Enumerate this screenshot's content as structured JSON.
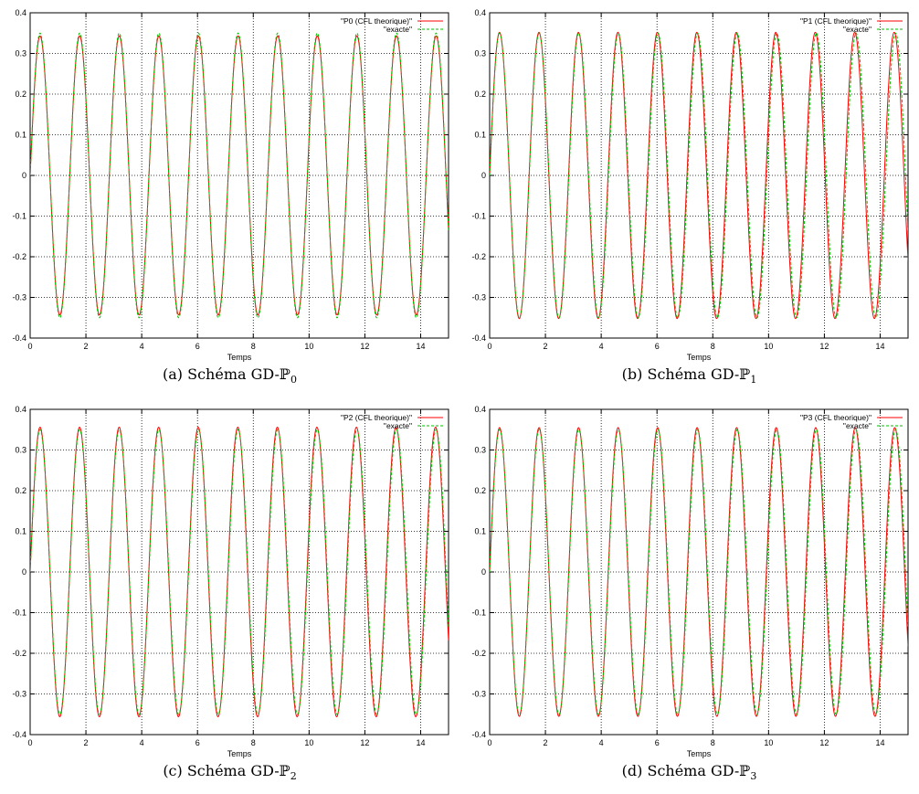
{
  "chart_data": [
    {
      "type": "line",
      "caption": "(a) Schéma GD-ℙ0",
      "caption_text": "(a) Schéma GD-ℙ",
      "caption_sub": "0",
      "xlabel": "Temps",
      "ylabel": "",
      "xlim": [
        0,
        15
      ],
      "ylim": [
        -0.4,
        0.4
      ],
      "xticks": [
        0,
        2,
        4,
        6,
        8,
        10,
        12,
        14
      ],
      "yticks": [
        -0.4,
        -0.3,
        -0.2,
        -0.1,
        0,
        0.1,
        0.2,
        0.3,
        0.4
      ],
      "grid": true,
      "legend_position": "top-right",
      "series": [
        {
          "name": "\"P0 (CFL theorique)\"",
          "color": "#ff0000",
          "dash": "solid",
          "amplitude": 0.343,
          "period": 1.42
        },
        {
          "name": "\"exacte\"",
          "color": "#00c000",
          "dash": "dashed",
          "amplitude": 0.35,
          "period": 1.42
        }
      ]
    },
    {
      "type": "line",
      "caption": "(b) Schéma GD-ℙ1",
      "caption_text": "(b) Schéma GD-ℙ",
      "caption_sub": "1",
      "xlabel": "Temps",
      "ylabel": "",
      "xlim": [
        0,
        15
      ],
      "ylim": [
        -0.4,
        0.4
      ],
      "xticks": [
        0,
        2,
        4,
        6,
        8,
        10,
        12,
        14
      ],
      "yticks": [
        -0.4,
        -0.3,
        -0.2,
        -0.1,
        0,
        0.1,
        0.2,
        0.3,
        0.4
      ],
      "grid": true,
      "legend_position": "top-right",
      "series": [
        {
          "name": "\"P1 (CFL theorique)\"",
          "color": "#ff0000",
          "dash": "solid",
          "amplitude": 0.352,
          "period": 1.415
        },
        {
          "name": "\"exacte\"",
          "color": "#00c000",
          "dash": "dashed",
          "amplitude": 0.35,
          "period": 1.42
        }
      ]
    },
    {
      "type": "line",
      "caption": "(c) Schéma GD-ℙ2",
      "caption_text": "(c) Schéma GD-ℙ",
      "caption_sub": "2",
      "xlabel": "Temps",
      "ylabel": "",
      "xlim": [
        0,
        15
      ],
      "ylim": [
        -0.4,
        0.4
      ],
      "xticks": [
        0,
        2,
        4,
        6,
        8,
        10,
        12,
        14
      ],
      "yticks": [
        -0.4,
        -0.3,
        -0.2,
        -0.1,
        0,
        0.1,
        0.2,
        0.3,
        0.4
      ],
      "grid": true,
      "legend_position": "top-right",
      "series": [
        {
          "name": "\"P2 (CFL theorique)\"",
          "color": "#ff0000",
          "dash": "solid",
          "amplitude": 0.356,
          "period": 1.418
        },
        {
          "name": "\"exacte\"",
          "color": "#00c000",
          "dash": "dashed",
          "amplitude": 0.35,
          "period": 1.42
        }
      ]
    },
    {
      "type": "line",
      "caption": "(d) Schéma GD-ℙ3",
      "caption_text": "(d) Schéma GD-ℙ",
      "caption_sub": "3",
      "xlabel": "Temps",
      "ylabel": "",
      "xlim": [
        0,
        15
      ],
      "ylim": [
        -0.4,
        0.4
      ],
      "xticks": [
        0,
        2,
        4,
        6,
        8,
        10,
        12,
        14
      ],
      "yticks": [
        -0.4,
        -0.3,
        -0.2,
        -0.1,
        0,
        0.1,
        0.2,
        0.3,
        0.4
      ],
      "grid": true,
      "legend_position": "top-right",
      "series": [
        {
          "name": "\"P3 (CFL theorique)\"",
          "color": "#ff0000",
          "dash": "solid",
          "amplitude": 0.355,
          "period": 1.417
        },
        {
          "name": "\"exacte\"",
          "color": "#00c000",
          "dash": "dashed",
          "amplitude": 0.35,
          "period": 1.42
        }
      ]
    }
  ]
}
